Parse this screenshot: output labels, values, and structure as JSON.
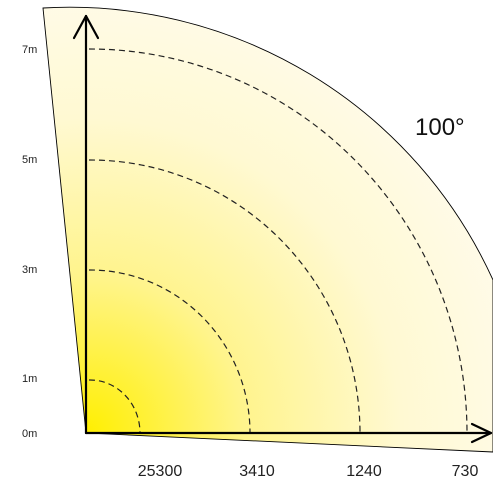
{
  "diagram": {
    "beam_angle_label": "100°",
    "distance_labels": [
      "0m",
      "1m",
      "3m",
      "5m",
      "7m"
    ],
    "illuminance_labels": [
      "25300",
      "3410",
      "1240",
      "730"
    ],
    "colors": {
      "beam_center": "#ffef00",
      "beam_edge": "#fffbea",
      "axis": "#000000",
      "rings": "#222222"
    }
  }
}
